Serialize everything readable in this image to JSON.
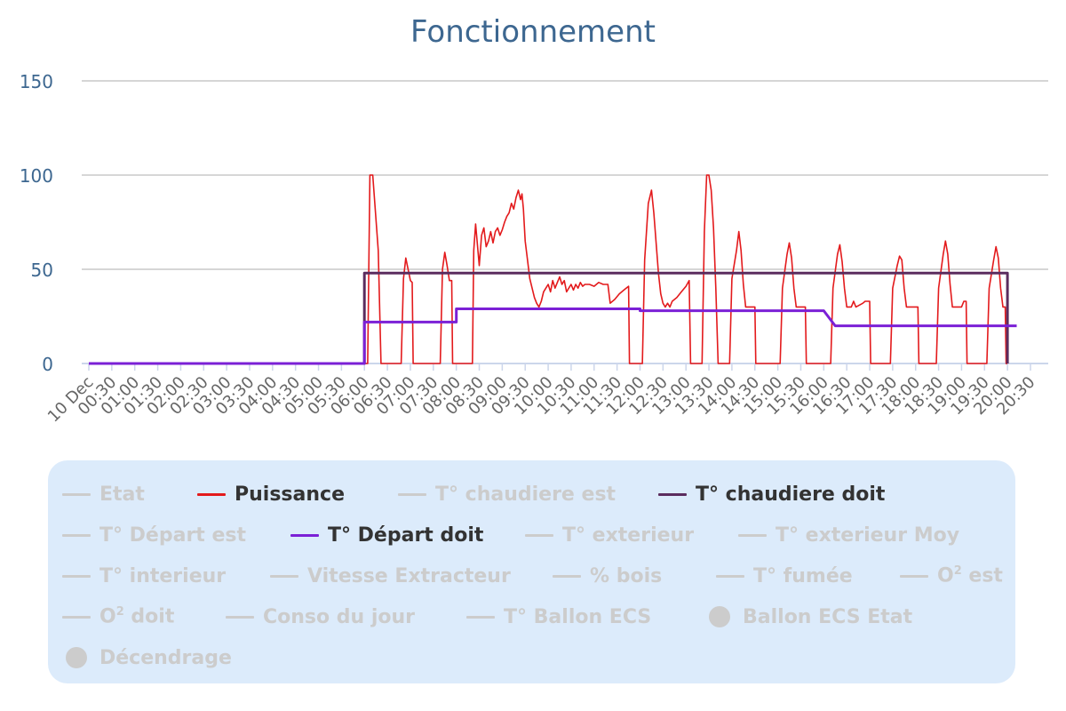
{
  "chart_data": {
    "type": "line",
    "title": "Fonctionnement",
    "xlabel": "",
    "ylabel": "",
    "ylim": [
      0,
      150
    ],
    "yticks": [
      0,
      50,
      100,
      150
    ],
    "grid": true,
    "legend_position": "bottom",
    "x_tick_labels": [
      "10 Dec",
      "00:30",
      "01:00",
      "01:30",
      "02:00",
      "02:30",
      "03:00",
      "03:30",
      "04:00",
      "04:30",
      "05:00",
      "05:30",
      "06:00",
      "06:30",
      "07:00",
      "07:30",
      "08:00",
      "08:30",
      "09:00",
      "09:30",
      "10:00",
      "10:30",
      "11:00",
      "11:30",
      "12:00",
      "12:30",
      "13:00",
      "13:30",
      "14:00",
      "14:30",
      "15:00",
      "15:30",
      "16:00",
      "16:30",
      "17:00",
      "17:30",
      "18:00",
      "18:30",
      "19:00",
      "19:30",
      "20:00",
      "20:30"
    ],
    "x_unit": "hours since 10 Dec 00:00",
    "series": [
      {
        "name": "Puissance",
        "color": "#e31a1c",
        "visible": true,
        "points": [
          [
            0,
            0
          ],
          [
            6.07,
            0
          ],
          [
            6.12,
            100
          ],
          [
            6.18,
            100
          ],
          [
            6.3,
            60
          ],
          [
            6.36,
            0
          ],
          [
            6.8,
            0
          ],
          [
            6.85,
            45
          ],
          [
            6.9,
            56
          ],
          [
            6.95,
            50
          ],
          [
            7.0,
            44
          ],
          [
            7.04,
            43
          ],
          [
            7.06,
            0
          ],
          [
            7.65,
            0
          ],
          [
            7.7,
            50
          ],
          [
            7.75,
            59
          ],
          [
            7.8,
            52
          ],
          [
            7.85,
            44
          ],
          [
            7.9,
            44
          ],
          [
            7.92,
            0
          ],
          [
            8.35,
            0
          ],
          [
            8.38,
            60
          ],
          [
            8.42,
            74
          ],
          [
            8.47,
            60
          ],
          [
            8.5,
            52
          ],
          [
            8.55,
            68
          ],
          [
            8.6,
            72
          ],
          [
            8.65,
            62
          ],
          [
            8.7,
            65
          ],
          [
            8.75,
            70
          ],
          [
            8.8,
            64
          ],
          [
            8.85,
            70
          ],
          [
            8.9,
            72
          ],
          [
            8.95,
            68
          ],
          [
            9.0,
            71
          ],
          [
            9.05,
            75
          ],
          [
            9.1,
            78
          ],
          [
            9.15,
            80
          ],
          [
            9.2,
            85
          ],
          [
            9.25,
            82
          ],
          [
            9.3,
            88
          ],
          [
            9.35,
            92
          ],
          [
            9.4,
            87
          ],
          [
            9.43,
            90
          ],
          [
            9.46,
            82
          ],
          [
            9.5,
            65
          ],
          [
            9.55,
            55
          ],
          [
            9.6,
            45
          ],
          [
            9.65,
            40
          ],
          [
            9.7,
            35
          ],
          [
            9.75,
            32
          ],
          [
            9.8,
            30
          ],
          [
            9.85,
            33
          ],
          [
            9.9,
            38
          ],
          [
            9.95,
            40
          ],
          [
            10.0,
            42
          ],
          [
            10.05,
            38
          ],
          [
            10.1,
            44
          ],
          [
            10.15,
            40
          ],
          [
            10.2,
            43
          ],
          [
            10.25,
            46
          ],
          [
            10.3,
            42
          ],
          [
            10.35,
            44
          ],
          [
            10.4,
            38
          ],
          [
            10.45,
            40
          ],
          [
            10.5,
            42
          ],
          [
            10.55,
            39
          ],
          [
            10.6,
            42
          ],
          [
            10.65,
            40
          ],
          [
            10.7,
            43
          ],
          [
            10.75,
            41
          ],
          [
            10.8,
            42
          ],
          [
            10.9,
            42
          ],
          [
            11.0,
            41
          ],
          [
            11.1,
            43
          ],
          [
            11.2,
            42
          ],
          [
            11.3,
            42
          ],
          [
            11.35,
            32
          ],
          [
            11.45,
            34
          ],
          [
            11.55,
            37
          ],
          [
            11.65,
            39
          ],
          [
            11.75,
            41
          ],
          [
            11.77,
            0
          ],
          [
            12.05,
            0
          ],
          [
            12.1,
            55
          ],
          [
            12.18,
            85
          ],
          [
            12.25,
            92
          ],
          [
            12.3,
            80
          ],
          [
            12.35,
            64
          ],
          [
            12.4,
            48
          ],
          [
            12.45,
            37
          ],
          [
            12.5,
            32
          ],
          [
            12.55,
            30
          ],
          [
            12.6,
            32
          ],
          [
            12.65,
            30
          ],
          [
            12.7,
            33
          ],
          [
            12.8,
            35
          ],
          [
            12.9,
            38
          ],
          [
            13.0,
            41
          ],
          [
            13.07,
            44
          ],
          [
            13.1,
            0
          ],
          [
            13.35,
            0
          ],
          [
            13.4,
            70
          ],
          [
            13.45,
            100
          ],
          [
            13.5,
            100
          ],
          [
            13.55,
            92
          ],
          [
            13.6,
            72
          ],
          [
            13.65,
            40
          ],
          [
            13.7,
            0
          ],
          [
            13.95,
            0
          ],
          [
            14.0,
            45
          ],
          [
            14.1,
            60
          ],
          [
            14.15,
            70
          ],
          [
            14.2,
            60
          ],
          [
            14.25,
            42
          ],
          [
            14.3,
            30
          ],
          [
            14.5,
            30
          ],
          [
            14.52,
            0
          ],
          [
            15.05,
            0
          ],
          [
            15.1,
            40
          ],
          [
            15.2,
            58
          ],
          [
            15.25,
            64
          ],
          [
            15.3,
            56
          ],
          [
            15.35,
            40
          ],
          [
            15.4,
            30
          ],
          [
            15.6,
            30
          ],
          [
            15.62,
            0
          ],
          [
            16.15,
            0
          ],
          [
            16.2,
            40
          ],
          [
            16.3,
            58
          ],
          [
            16.35,
            63
          ],
          [
            16.4,
            54
          ],
          [
            16.45,
            40
          ],
          [
            16.5,
            30
          ],
          [
            16.6,
            30
          ],
          [
            16.65,
            33
          ],
          [
            16.7,
            30
          ],
          [
            16.85,
            32
          ],
          [
            16.9,
            33
          ],
          [
            17.0,
            33
          ],
          [
            17.02,
            0
          ],
          [
            17.45,
            0
          ],
          [
            17.5,
            40
          ],
          [
            17.6,
            52
          ],
          [
            17.65,
            57
          ],
          [
            17.7,
            55
          ],
          [
            17.75,
            40
          ],
          [
            17.8,
            30
          ],
          [
            18.05,
            30
          ],
          [
            18.07,
            0
          ],
          [
            18.45,
            0
          ],
          [
            18.5,
            40
          ],
          [
            18.6,
            58
          ],
          [
            18.65,
            65
          ],
          [
            18.7,
            58
          ],
          [
            18.75,
            42
          ],
          [
            18.8,
            30
          ],
          [
            19.0,
            30
          ],
          [
            19.05,
            33
          ],
          [
            19.1,
            33
          ],
          [
            19.12,
            0
          ],
          [
            19.55,
            0
          ],
          [
            19.6,
            40
          ],
          [
            19.7,
            55
          ],
          [
            19.75,
            62
          ],
          [
            19.8,
            56
          ],
          [
            19.85,
            40
          ],
          [
            19.9,
            30
          ],
          [
            19.95,
            30
          ],
          [
            19.97,
            0
          ],
          [
            20.0,
            0
          ]
        ]
      },
      {
        "name": "T° chaudiere doit",
        "color": "#5b2c5e",
        "visible": true,
        "points": [
          [
            0,
            0
          ],
          [
            6.0,
            0
          ],
          [
            6.0,
            48
          ],
          [
            20.0,
            48
          ],
          [
            20.0,
            0
          ]
        ]
      },
      {
        "name": "T° Départ doit",
        "color": "#7b20d6",
        "visible": true,
        "points": [
          [
            0,
            0
          ],
          [
            6.0,
            0
          ],
          [
            6.0,
            22
          ],
          [
            8.0,
            22
          ],
          [
            8.0,
            29
          ],
          [
            12.0,
            29
          ],
          [
            12.0,
            28
          ],
          [
            16.0,
            28
          ],
          [
            16.25,
            20
          ],
          [
            20.2,
            20
          ]
        ]
      }
    ]
  },
  "legend": {
    "items": [
      {
        "label": "Etat",
        "color": "#cccccc",
        "symbol": "line",
        "visible": false
      },
      {
        "label": "Puissance",
        "color": "#e31a1c",
        "symbol": "line",
        "visible": true
      },
      {
        "label": "T° chaudiere est",
        "color": "#cccccc",
        "symbol": "line",
        "visible": false
      },
      {
        "label": "T° chaudiere doit",
        "color": "#5b2c5e",
        "symbol": "line",
        "visible": true
      },
      {
        "label": "T° Départ est",
        "color": "#cccccc",
        "symbol": "line",
        "visible": false
      },
      {
        "label": "T° Départ doit",
        "color": "#7b20d6",
        "symbol": "line",
        "visible": true
      },
      {
        "label": "T° exterieur",
        "color": "#cccccc",
        "symbol": "line",
        "visible": false
      },
      {
        "label": "T° exterieur Moy",
        "color": "#cccccc",
        "symbol": "line",
        "visible": false
      },
      {
        "label": "T° interieur",
        "color": "#cccccc",
        "symbol": "line",
        "visible": false
      },
      {
        "label": "Vitesse Extracteur",
        "color": "#cccccc",
        "symbol": "line",
        "visible": false
      },
      {
        "label": "% bois",
        "color": "#cccccc",
        "symbol": "line",
        "visible": false
      },
      {
        "label": "T° fumée",
        "color": "#cccccc",
        "symbol": "line",
        "visible": false
      },
      {
        "label": "O",
        "sup": "2",
        "suffix": " est",
        "color": "#cccccc",
        "symbol": "line",
        "visible": false
      },
      {
        "label": "O",
        "sup": "2",
        "suffix": " doit",
        "color": "#cccccc",
        "symbol": "line",
        "visible": false
      },
      {
        "label": "Conso du jour",
        "color": "#cccccc",
        "symbol": "line",
        "visible": false
      },
      {
        "label": "T° Ballon ECS",
        "color": "#cccccc",
        "symbol": "line",
        "visible": false
      },
      {
        "label": "Ballon ECS Etat",
        "color": "#cccccc",
        "symbol": "dot",
        "visible": false
      },
      {
        "label": "Décendrage",
        "color": "#cccccc",
        "symbol": "dot",
        "visible": false
      }
    ]
  }
}
